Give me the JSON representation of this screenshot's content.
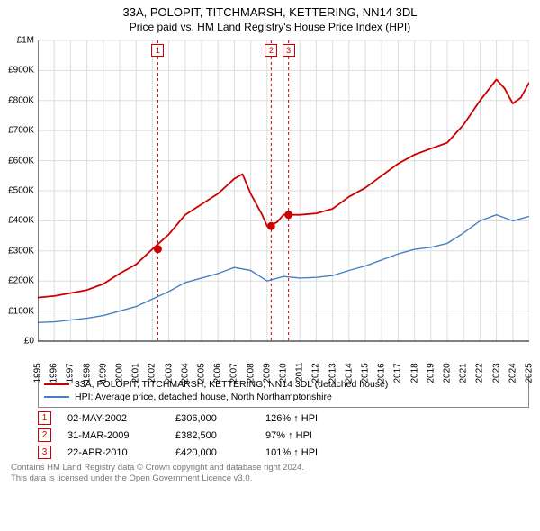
{
  "title_line1": "33A, POLOPIT, TITCHMARSH, KETTERING, NN14 3DL",
  "title_line2": "Price paid vs. HM Land Registry's House Price Index (HPI)",
  "chart": {
    "type": "line",
    "background_color": "#ffffff",
    "plot_border_color": "#888888",
    "grid_color": "#dddddd",
    "yaxis": {
      "min": 0,
      "max": 1000000,
      "step": 100000,
      "labels": [
        "£0",
        "£100K",
        "£200K",
        "£300K",
        "£400K",
        "£500K",
        "£600K",
        "£700K",
        "£800K",
        "£900K",
        "£1M"
      ]
    },
    "xaxis": {
      "min": 1995,
      "max": 2025,
      "labels": [
        "1995",
        "1996",
        "1997",
        "1998",
        "1999",
        "2000",
        "2001",
        "2002",
        "2003",
        "2004",
        "2005",
        "2006",
        "2007",
        "2008",
        "2009",
        "2010",
        "2011",
        "2012",
        "2013",
        "2014",
        "2015",
        "2016",
        "2017",
        "2018",
        "2019",
        "2020",
        "2021",
        "2022",
        "2023",
        "2024",
        "2025"
      ]
    },
    "series": [
      {
        "name": "price_paid",
        "color": "#cc0000",
        "width": 1.8,
        "points": [
          [
            1995,
            145000
          ],
          [
            1996,
            150000
          ],
          [
            1997,
            160000
          ],
          [
            1998,
            170000
          ],
          [
            1999,
            190000
          ],
          [
            2000,
            225000
          ],
          [
            2001,
            255000
          ],
          [
            2002,
            306000
          ],
          [
            2003,
            355000
          ],
          [
            2004,
            420000
          ],
          [
            2005,
            455000
          ],
          [
            2006,
            490000
          ],
          [
            2007,
            540000
          ],
          [
            2007.5,
            555000
          ],
          [
            2008,
            490000
          ],
          [
            2008.7,
            420000
          ],
          [
            2009,
            382500
          ],
          [
            2009.6,
            395000
          ],
          [
            2010,
            420000
          ],
          [
            2011,
            420000
          ],
          [
            2012,
            425000
          ],
          [
            2013,
            440000
          ],
          [
            2014,
            480000
          ],
          [
            2015,
            510000
          ],
          [
            2016,
            550000
          ],
          [
            2017,
            590000
          ],
          [
            2018,
            620000
          ],
          [
            2019,
            640000
          ],
          [
            2020,
            660000
          ],
          [
            2021,
            720000
          ],
          [
            2022,
            800000
          ],
          [
            2023,
            870000
          ],
          [
            2023.5,
            840000
          ],
          [
            2024,
            790000
          ],
          [
            2024.5,
            810000
          ],
          [
            2025,
            860000
          ]
        ]
      },
      {
        "name": "hpi",
        "color": "#4a7fc4",
        "width": 1.4,
        "points": [
          [
            1995,
            62000
          ],
          [
            1996,
            64000
          ],
          [
            1997,
            70000
          ],
          [
            1998,
            76000
          ],
          [
            1999,
            85000
          ],
          [
            2000,
            100000
          ],
          [
            2001,
            115000
          ],
          [
            2002,
            140000
          ],
          [
            2003,
            165000
          ],
          [
            2004,
            195000
          ],
          [
            2005,
            210000
          ],
          [
            2006,
            225000
          ],
          [
            2007,
            245000
          ],
          [
            2008,
            235000
          ],
          [
            2009,
            200000
          ],
          [
            2010,
            215000
          ],
          [
            2011,
            210000
          ],
          [
            2012,
            212000
          ],
          [
            2013,
            218000
          ],
          [
            2014,
            235000
          ],
          [
            2015,
            250000
          ],
          [
            2016,
            270000
          ],
          [
            2017,
            290000
          ],
          [
            2018,
            305000
          ],
          [
            2019,
            312000
          ],
          [
            2020,
            325000
          ],
          [
            2021,
            360000
          ],
          [
            2022,
            400000
          ],
          [
            2023,
            420000
          ],
          [
            2024,
            400000
          ],
          [
            2025,
            415000
          ]
        ]
      }
    ],
    "event_lines": [
      {
        "x": 2002.33,
        "color": "#cc0000"
      },
      {
        "x": 2009.25,
        "color": "#cc0000"
      },
      {
        "x": 2010.31,
        "color": "#cc0000"
      }
    ],
    "event_markers": [
      {
        "n": "1",
        "x": 2002.33,
        "y": 306000
      },
      {
        "n": "2",
        "x": 2009.25,
        "y": 382500
      },
      {
        "n": "3",
        "x": 2010.31,
        "y": 420000
      }
    ]
  },
  "legend": {
    "items": [
      {
        "color": "#cc0000",
        "label": "33A, POLOPIT, TITCHMARSH, KETTERING, NN14 3DL (detached house)"
      },
      {
        "color": "#4a7fc4",
        "label": "HPI: Average price, detached house, North Northamptonshire"
      }
    ]
  },
  "events": [
    {
      "n": "1",
      "date": "02-MAY-2002",
      "price": "£306,000",
      "pct": "126% ↑ HPI"
    },
    {
      "n": "2",
      "date": "31-MAR-2009",
      "price": "£382,500",
      "pct": "97% ↑ HPI"
    },
    {
      "n": "3",
      "date": "22-APR-2010",
      "price": "£420,000",
      "pct": "101% ↑ HPI"
    }
  ],
  "footer_line1": "Contains HM Land Registry data © Crown copyright and database right 2024.",
  "footer_line2": "This data is licensed under the Open Government Licence v3.0."
}
